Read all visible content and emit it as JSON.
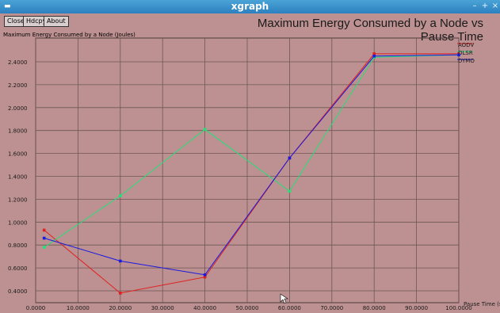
{
  "window": {
    "title": "xgraph"
  },
  "toolbar": {
    "close_label": "Close",
    "hdcpy_label": "Hdcpy",
    "about_label": "About"
  },
  "chart_data": {
    "type": "line",
    "title": "Maximum Energy Consumed by a Node vs Pause Time",
    "ylabel": "Maximum Energy Consumed by a Node (Joules)",
    "xlabel": "Pause Time (s)",
    "xlim": [
      0,
      100
    ],
    "ylim": [
      0.4,
      2.4
    ],
    "grid": true,
    "legend_position": "top-right",
    "x_ticks": [
      "0.0000",
      "10.0000",
      "20.0000",
      "30.0000",
      "40.0000",
      "50.0000",
      "60.0000",
      "70.0000",
      "80.0000",
      "90.0000",
      "100.0000"
    ],
    "y_ticks": [
      "0.4000",
      "0.6000",
      "0.8000",
      "1.0000",
      "1.2000",
      "1.4000",
      "1.6000",
      "1.8000",
      "2.0000",
      "2.2000",
      "2.4000"
    ],
    "series": [
      {
        "name": "AODV",
        "color": "#e02020",
        "x": [
          2,
          20,
          40,
          60,
          80,
          100
        ],
        "y": [
          0.93,
          0.38,
          0.52,
          1.56,
          2.47,
          2.47
        ]
      },
      {
        "name": "OLSR",
        "color": "#22e07a",
        "x": [
          2,
          20,
          40,
          60,
          80,
          100
        ],
        "y": [
          0.78,
          1.23,
          1.81,
          1.27,
          2.44,
          2.46
        ]
      },
      {
        "name": "DYMO",
        "color": "#1a1ae0",
        "x": [
          2,
          20,
          40,
          60,
          80,
          100
        ],
        "y": [
          0.86,
          0.66,
          0.54,
          1.56,
          2.45,
          2.46
        ]
      }
    ]
  }
}
